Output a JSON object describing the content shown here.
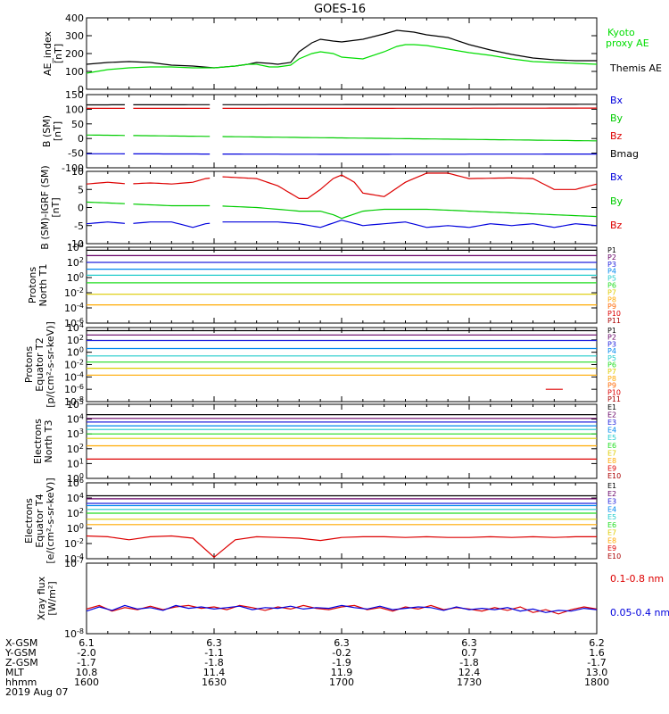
{
  "title": "GOES-16",
  "chart_data": [
    {
      "type": "line",
      "ylabel": "AE_index [nT]",
      "ylim": [
        0,
        400
      ],
      "yticks": [
        "0",
        "100",
        "200",
        "300",
        "400"
      ],
      "legend": [
        "Kyoto proxy AE",
        "Themis AE"
      ],
      "series": [
        {
          "name": "Themis AE",
          "color": "#000000",
          "x": [
            1600,
            1605,
            1610,
            1615,
            1620,
            1625,
            1630,
            1635,
            1638,
            1640,
            1643,
            1645,
            1648,
            1650,
            1653,
            1655,
            1658,
            1700,
            1705,
            1710,
            1713,
            1715,
            1717,
            1720,
            1725,
            1730,
            1735,
            1740,
            1745,
            1750,
            1755,
            1800
          ],
          "y": [
            140,
            150,
            155,
            150,
            135,
            130,
            120,
            130,
            140,
            150,
            145,
            140,
            150,
            210,
            260,
            280,
            270,
            265,
            280,
            310,
            330,
            325,
            320,
            305,
            290,
            250,
            220,
            195,
            175,
            165,
            160,
            160
          ]
        },
        {
          "name": "Kyoto proxy AE",
          "color": "#00dd00",
          "x": [
            1600,
            1605,
            1610,
            1615,
            1620,
            1625,
            1630,
            1635,
            1638,
            1640,
            1643,
            1645,
            1648,
            1650,
            1653,
            1655,
            1658,
            1700,
            1705,
            1710,
            1713,
            1715,
            1717,
            1720,
            1725,
            1730,
            1735,
            1740,
            1745,
            1750,
            1755,
            1800
          ],
          "y": [
            90,
            110,
            120,
            125,
            125,
            120,
            120,
            130,
            140,
            140,
            125,
            125,
            135,
            170,
            200,
            210,
            200,
            180,
            170,
            210,
            240,
            250,
            250,
            245,
            225,
            205,
            190,
            170,
            155,
            150,
            145,
            140
          ]
        }
      ]
    },
    {
      "type": "line",
      "ylabel": "B (SM) [nT]",
      "ylim": [
        -100,
        150
      ],
      "yticks": [
        "-100",
        "-50",
        "0",
        "50",
        "100",
        "150"
      ],
      "legend": [
        "Bx",
        "By",
        "Bz",
        "Bmag"
      ],
      "gaps": [
        [
          1609,
          1611
        ],
        [
          1614,
          1615
        ],
        [
          1629,
          1632
        ]
      ],
      "series": [
        {
          "name": "Bmag",
          "color": "#000000",
          "x": [
            1600,
            1700,
            1800
          ],
          "y": [
            115,
            116,
            117
          ]
        },
        {
          "name": "Bz",
          "color": "#dd0000",
          "x": [
            1600,
            1700,
            1800
          ],
          "y": [
            103,
            103,
            104
          ]
        },
        {
          "name": "By",
          "color": "#00cc00",
          "x": [
            1600,
            1700,
            1800
          ],
          "y": [
            12,
            2,
            -8
          ]
        },
        {
          "name": "Bx",
          "color": "#0000dd",
          "x": [
            1600,
            1700,
            1800
          ],
          "y": [
            -52,
            -54,
            -53
          ]
        }
      ]
    },
    {
      "type": "line",
      "ylabel": "B (SM)-IGRF (SM) [nT]",
      "ylim": [
        -10,
        10
      ],
      "yticks": [
        "-10",
        "-5",
        "0",
        "5",
        "10"
      ],
      "legend": [
        "Bx",
        "By",
        "Bz"
      ],
      "gaps": [
        [
          1609,
          1611
        ],
        [
          1614,
          1615
        ],
        [
          1629,
          1632
        ]
      ],
      "series": [
        {
          "name": "Bz",
          "color": "#dd0000",
          "x": [
            1600,
            1605,
            1610,
            1615,
            1620,
            1625,
            1628,
            1632,
            1640,
            1645,
            1650,
            1652,
            1655,
            1658,
            1700,
            1703,
            1705,
            1710,
            1715,
            1720,
            1725,
            1730,
            1740,
            1745,
            1750,
            1755,
            1800
          ],
          "y": [
            6.5,
            7,
            6.5,
            6.8,
            6.5,
            7,
            8,
            8.5,
            8,
            6,
            2.5,
            2.5,
            5,
            8,
            9,
            7,
            4,
            3,
            7,
            9.5,
            9.5,
            8,
            8.2,
            8,
            5,
            5,
            6.5
          ]
        },
        {
          "name": "By",
          "color": "#00cc00",
          "x": [
            1600,
            1610,
            1620,
            1630,
            1640,
            1650,
            1655,
            1658,
            1700,
            1705,
            1710,
            1720,
            1730,
            1740,
            1750,
            1800
          ],
          "y": [
            1.5,
            1,
            0.5,
            0.5,
            0,
            -1,
            -1,
            -2,
            -3,
            -1,
            -0.5,
            -0.5,
            -1,
            -1.5,
            -2,
            -2.5
          ]
        },
        {
          "name": "Bx",
          "color": "#0000dd",
          "x": [
            1600,
            1605,
            1610,
            1615,
            1620,
            1625,
            1628,
            1632,
            1640,
            1645,
            1650,
            1655,
            1700,
            1705,
            1710,
            1715,
            1720,
            1725,
            1730,
            1735,
            1740,
            1745,
            1750,
            1755,
            1800
          ],
          "y": [
            -4.5,
            -4,
            -4.5,
            -4,
            -4,
            -5.5,
            -4.5,
            -4,
            -4,
            -4,
            -4.5,
            -5.5,
            -3.5,
            -5,
            -4.5,
            -4,
            -5.5,
            -5,
            -5.5,
            -4.5,
            -5,
            -4.5,
            -5.5,
            -4.5,
            -5
          ]
        }
      ]
    },
    {
      "type": "line",
      "yscale": "log",
      "ylabel": "Protons North T1",
      "ylim_exp": [
        -6,
        4
      ],
      "yticks": [
        "10^-6",
        "10^-4",
        "10^-2",
        "10^0",
        "10^2",
        "10^4"
      ],
      "legend": [
        "P1",
        "P2",
        "P3",
        "P4",
        "P5",
        "P6",
        "P7",
        "P8",
        "P9",
        "P10",
        "P11"
      ],
      "series": [
        {
          "name": "P1",
          "color": "#000000",
          "y_exp": 3.6
        },
        {
          "name": "P2",
          "color": "#660066",
          "y_exp": 2.9
        },
        {
          "name": "P3",
          "color": "#2222dd",
          "y_exp": 2.0
        },
        {
          "name": "P4",
          "color": "#0088ee",
          "y_exp": 1.1
        },
        {
          "name": "P5",
          "color": "#22cccc",
          "y_exp": 0.3
        },
        {
          "name": "P6",
          "color": "#22dd22",
          "y_exp": -0.7
        },
        {
          "name": "P7",
          "color": "#ddcc00",
          "y_exp": -2.2
        },
        {
          "name": "P8",
          "color": "#ffaa00",
          "y_exp": -3.6
        }
      ]
    },
    {
      "type": "line",
      "yscale": "log",
      "ylabel": "Protons Equator T2 [p/(cm2-s-sr-keV)]",
      "ylim_exp": [
        -8,
        4
      ],
      "yticks": [
        "10^-8",
        "10^-6",
        "10^-4",
        "10^-2",
        "10^0",
        "10^2",
        "10^4"
      ],
      "legend": [
        "P1",
        "P2",
        "P3",
        "P4",
        "P5",
        "P6",
        "P7",
        "P8",
        "P9",
        "P10",
        "P11"
      ],
      "series": [
        {
          "name": "P1",
          "color": "#000000",
          "y_exp": 3.5
        },
        {
          "name": "P2",
          "color": "#660066",
          "y_exp": 2.8
        },
        {
          "name": "P3",
          "color": "#2222dd",
          "y_exp": 1.9
        },
        {
          "name": "P4",
          "color": "#0088ee",
          "y_exp": 0.6
        },
        {
          "name": "P5",
          "color": "#22cccc",
          "y_exp": -0.6
        },
        {
          "name": "P6",
          "color": "#22dd22",
          "y_exp": -1.6
        },
        {
          "name": "P7",
          "color": "#ddcc00",
          "y_exp": -2.6
        },
        {
          "name": "P8",
          "color": "#ffaa00",
          "y_exp": -3.7
        },
        {
          "name": "P10",
          "color": "#dd0000",
          "y_exp": -6.0,
          "x_range": [
            1748,
            1752
          ]
        }
      ]
    },
    {
      "type": "line",
      "yscale": "log",
      "ylabel": "Electrons North T3",
      "ylim_exp": [
        0,
        5
      ],
      "yticks": [
        "10^0",
        "10^1",
        "10^2",
        "10^3",
        "10^4",
        "10^5"
      ],
      "legend": [
        "E1",
        "E2",
        "E3",
        "E4",
        "E5",
        "E6",
        "E7",
        "E8",
        "E9",
        "E10"
      ],
      "series": [
        {
          "name": "E1",
          "color": "#000000",
          "y_exp": 4.3
        },
        {
          "name": "E2",
          "color": "#660066",
          "y_exp": 4.05
        },
        {
          "name": "E3",
          "color": "#2222dd",
          "y_exp": 3.8
        },
        {
          "name": "E4",
          "color": "#0088ee",
          "y_exp": 3.55
        },
        {
          "name": "E5",
          "color": "#22cccc",
          "y_exp": 3.3
        },
        {
          "name": "E6",
          "color": "#22dd22",
          "y_exp": 3.0
        },
        {
          "name": "E7",
          "color": "#ddcc00",
          "y_exp": 2.7
        },
        {
          "name": "E8",
          "color": "#ffaa00",
          "y_exp": 2.2
        },
        {
          "name": "E9",
          "color": "#dd0000",
          "y_exp": 1.3
        }
      ]
    },
    {
      "type": "line",
      "yscale": "log",
      "ylabel": "Electrons Equator T4 [e/(cm2-s-sr-keV)]",
      "ylim_exp": [
        -4,
        6
      ],
      "yticks": [
        "10^-4",
        "10^-2",
        "10^0",
        "10^2",
        "10^4",
        "10^6"
      ],
      "legend": [
        "E1",
        "E2",
        "E3",
        "E4",
        "E5",
        "E6",
        "E7",
        "E8",
        "E9",
        "E10"
      ],
      "series": [
        {
          "name": "E1",
          "color": "#000000",
          "y_exp": 4.3
        },
        {
          "name": "E2",
          "color": "#660066",
          "y_exp": 3.9
        },
        {
          "name": "E3",
          "color": "#2222dd",
          "y_exp": 3.3
        },
        {
          "name": "E4",
          "color": "#0088ee",
          "y_exp": 3.0
        },
        {
          "name": "E5",
          "color": "#22cccc",
          "y_exp": 2.5
        },
        {
          "name": "E6",
          "color": "#22dd22",
          "y_exp": 2.0
        },
        {
          "name": "E7",
          "color": "#ddcc00",
          "y_exp": 1.2
        },
        {
          "name": "E8",
          "color": "#ffaa00",
          "y_exp": 0.5
        },
        {
          "name": "E9",
          "color": "#dd0000",
          "x": [
            1600,
            1605,
            1610,
            1615,
            1620,
            1625,
            1630,
            1635,
            1640,
            1645,
            1650,
            1655,
            1700,
            1705,
            1710,
            1715,
            1720,
            1725,
            1730,
            1735,
            1740,
            1745,
            1750,
            1755,
            1800
          ],
          "y_exp": [
            -1.0,
            -1.1,
            -1.5,
            -1.1,
            -1.0,
            -1.3,
            -3.8,
            -1.5,
            -1.1,
            -1.2,
            -1.3,
            -1.6,
            -1.2,
            -1.1,
            -1.1,
            -1.2,
            -1.1,
            -1.2,
            -1.2,
            -1.1,
            -1.2,
            -1.1,
            -1.2,
            -1.1,
            -1.1
          ]
        }
      ]
    },
    {
      "type": "line",
      "yscale": "log",
      "ylabel": "Xray flux [W/m2]",
      "ylim_exp": [
        -8,
        -7
      ],
      "yticks": [
        "10^-8",
        "10^-7"
      ],
      "legend": [
        "0.1-0.8 nm",
        "0.05-0.4 nm"
      ],
      "series": [
        {
          "name": "0.1-0.8 nm",
          "color": "#dd0000",
          "x": [
            1600,
            1603,
            1606,
            1609,
            1612,
            1615,
            1618,
            1621,
            1624,
            1627,
            1630,
            1633,
            1636,
            1639,
            1642,
            1645,
            1648,
            1651,
            1654,
            1657,
            1700,
            1703,
            1706,
            1709,
            1712,
            1715,
            1718,
            1721,
            1724,
            1727,
            1730,
            1733,
            1736,
            1739,
            1742,
            1745,
            1748,
            1751,
            1754,
            1757,
            1800
          ],
          "y_exp": [
            -7.65,
            -7.6,
            -7.68,
            -7.63,
            -7.66,
            -7.61,
            -7.66,
            -7.62,
            -7.6,
            -7.64,
            -7.62,
            -7.66,
            -7.6,
            -7.63,
            -7.67,
            -7.62,
            -7.65,
            -7.6,
            -7.64,
            -7.66,
            -7.62,
            -7.6,
            -7.66,
            -7.63,
            -7.68,
            -7.62,
            -7.65,
            -7.6,
            -7.66,
            -7.63,
            -7.65,
            -7.68,
            -7.63,
            -7.67,
            -7.62,
            -7.7,
            -7.66,
            -7.72,
            -7.66,
            -7.62,
            -7.65
          ]
        },
        {
          "name": "0.05-0.4 nm",
          "color": "#0000dd",
          "x": [
            1600,
            1603,
            1606,
            1609,
            1612,
            1615,
            1618,
            1621,
            1624,
            1627,
            1630,
            1633,
            1636,
            1639,
            1642,
            1645,
            1648,
            1651,
            1654,
            1657,
            1700,
            1703,
            1706,
            1709,
            1712,
            1715,
            1718,
            1721,
            1724,
            1727,
            1730,
            1733,
            1736,
            1739,
            1742,
            1745,
            1748,
            1751,
            1754,
            1757,
            1800
          ],
          "y_exp": [
            -7.68,
            -7.62,
            -7.67,
            -7.6,
            -7.65,
            -7.63,
            -7.67,
            -7.6,
            -7.64,
            -7.62,
            -7.65,
            -7.63,
            -7.61,
            -7.66,
            -7.63,
            -7.64,
            -7.61,
            -7.65,
            -7.63,
            -7.64,
            -7.6,
            -7.63,
            -7.65,
            -7.61,
            -7.66,
            -7.64,
            -7.62,
            -7.63,
            -7.67,
            -7.62,
            -7.66,
            -7.64,
            -7.66,
            -7.63,
            -7.68,
            -7.65,
            -7.7,
            -7.67,
            -7.68,
            -7.64,
            -7.66
          ]
        }
      ]
    }
  ],
  "x_axis": {
    "range": [
      1600,
      1800
    ],
    "major_ticks": [
      1600,
      1630,
      1700,
      1730,
      1800
    ],
    "minor_ticks": [
      1605,
      1610,
      1615,
      1620,
      1625,
      1635,
      1640,
      1645,
      1650,
      1655,
      1705,
      1710,
      1715,
      1720,
      1725,
      1735,
      1740,
      1745,
      1750,
      1755
    ],
    "row_labels": [
      "X-GSM",
      "Y-GSM",
      "Z-GSM",
      "MLT",
      "hhmm",
      "2019 Aug 07"
    ],
    "rows": [
      [
        "6.1",
        "6.3",
        "6.3",
        "6.3",
        "6.2"
      ],
      [
        "-2.0",
        "-1.1",
        "-0.2",
        "0.7",
        "1.6"
      ],
      [
        "-1.7",
        "-1.8",
        "-1.9",
        "-1.8",
        "-1.7"
      ],
      [
        "10.8",
        "11.4",
        "11.9",
        "12.4",
        "13.0"
      ],
      [
        "1600",
        "1630",
        "1700",
        "1730",
        "1800"
      ]
    ]
  }
}
